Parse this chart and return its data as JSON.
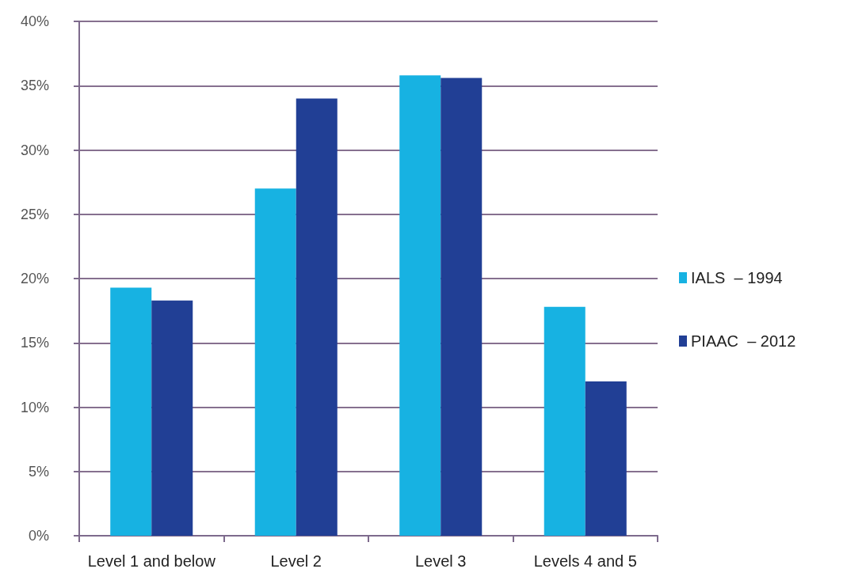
{
  "chart_data": {
    "type": "bar",
    "categories": [
      "Level 1 and below",
      "Level 2",
      "Level 3",
      "Levels 4 and 5"
    ],
    "series": [
      {
        "name": "IALS  – 1994",
        "color": "#17b2e2",
        "values": [
          19.3,
          27.0,
          35.8,
          17.8
        ]
      },
      {
        "name": "PIAAC  – 2012",
        "color": "#213f95",
        "values": [
          18.3,
          34.0,
          35.6,
          12.0
        ]
      }
    ],
    "ylim": [
      0,
      40
    ],
    "yticks": [
      {
        "value": 0,
        "label": "0%"
      },
      {
        "value": 5,
        "label": "5%"
      },
      {
        "value": 10,
        "label": "10%"
      },
      {
        "value": 15,
        "label": "15%"
      },
      {
        "value": 20,
        "label": "20%"
      },
      {
        "value": 25,
        "label": "25%"
      },
      {
        "value": 30,
        "label": "30%"
      },
      {
        "value": 35,
        "label": "35%"
      },
      {
        "value": 40,
        "label": "40%"
      }
    ],
    "grid": "y",
    "legend": "right"
  }
}
